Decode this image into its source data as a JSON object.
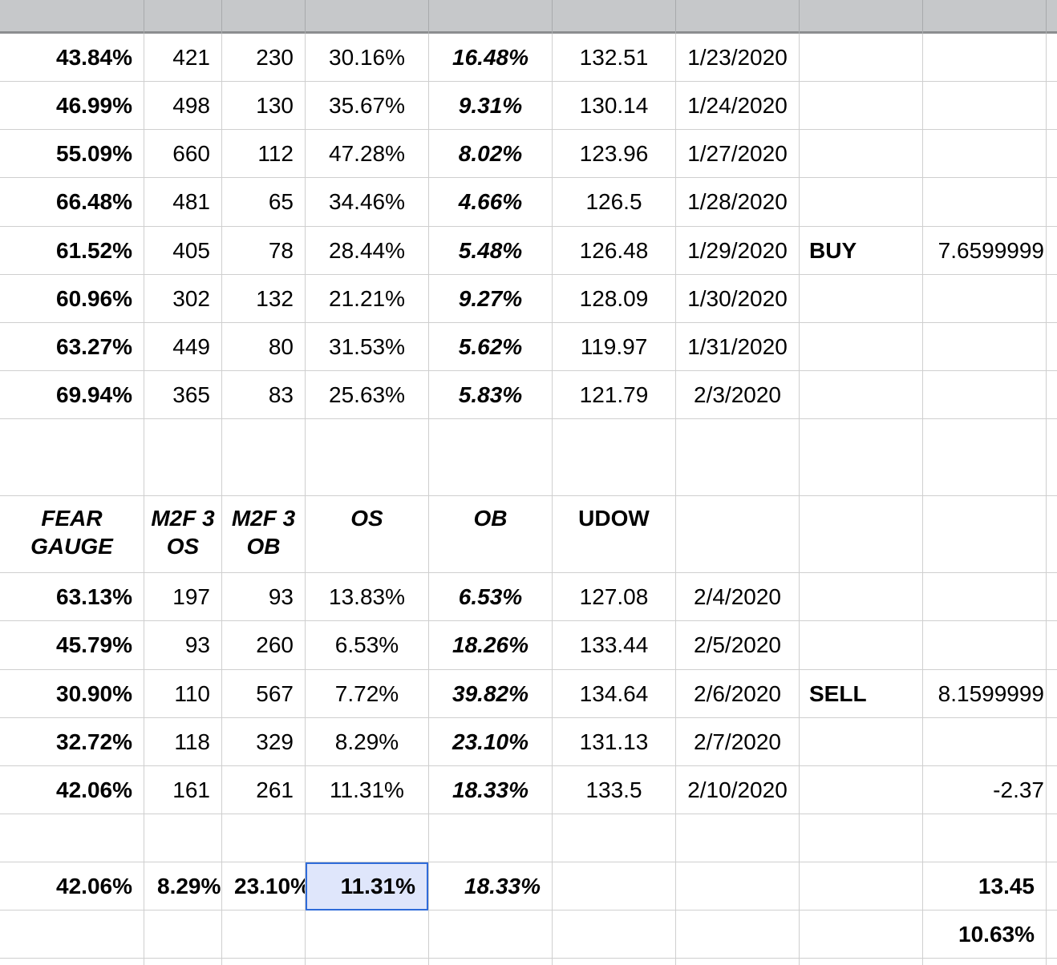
{
  "top_rows": [
    {
      "fear": "43.84%",
      "os3": "421",
      "ob3": "230",
      "os": "30.16%",
      "ob": "16.48%",
      "udow": "132.51",
      "date": "1/23/2020",
      "signal": "",
      "value": ""
    },
    {
      "fear": "46.99%",
      "os3": "498",
      "ob3": "130",
      "os": "35.67%",
      "ob": "9.31%",
      "udow": "130.14",
      "date": "1/24/2020",
      "signal": "",
      "value": ""
    },
    {
      "fear": "55.09%",
      "os3": "660",
      "ob3": "112",
      "os": "47.28%",
      "ob": "8.02%",
      "udow": "123.96",
      "date": "1/27/2020",
      "signal": "",
      "value": ""
    },
    {
      "fear": "66.48%",
      "os3": "481",
      "ob3": "65",
      "os": "34.46%",
      "ob": "4.66%",
      "udow": "126.5",
      "date": "1/28/2020",
      "signal": "",
      "value": ""
    },
    {
      "fear": "61.52%",
      "os3": "405",
      "ob3": "78",
      "os": "28.44%",
      "ob": "5.48%",
      "udow": "126.48",
      "date": "1/29/2020",
      "signal": "BUY",
      "value": "7.6599999"
    },
    {
      "fear": "60.96%",
      "os3": "302",
      "ob3": "132",
      "os": "21.21%",
      "ob": "9.27%",
      "udow": "128.09",
      "date": "1/30/2020",
      "signal": "",
      "value": ""
    },
    {
      "fear": "63.27%",
      "os3": "449",
      "ob3": "80",
      "os": "31.53%",
      "ob": "5.62%",
      "udow": "119.97",
      "date": "1/31/2020",
      "signal": "",
      "value": ""
    },
    {
      "fear": "69.94%",
      "os3": "365",
      "ob3": "83",
      "os": "25.63%",
      "ob": "5.83%",
      "udow": "121.79",
      "date": "2/3/2020",
      "signal": "",
      "value": ""
    }
  ],
  "header": {
    "fear_gauge": "FEAR GAUGE",
    "m2f_3_os": "M2F 3 OS",
    "m2f_3_ob": "M2F 3 OB",
    "os": "OS",
    "ob": "OB",
    "udow": "UDOW"
  },
  "bottom_rows": [
    {
      "fear": "63.13%",
      "os3": "197",
      "ob3": "93",
      "os": "13.83%",
      "ob": "6.53%",
      "udow": "127.08",
      "date": "2/4/2020",
      "signal": "",
      "value": ""
    },
    {
      "fear": "45.79%",
      "os3": "93",
      "ob3": "260",
      "os": "6.53%",
      "ob": "18.26%",
      "udow": "133.44",
      "date": "2/5/2020",
      "signal": "",
      "value": ""
    },
    {
      "fear": "30.90%",
      "os3": "110",
      "ob3": "567",
      "os": "7.72%",
      "ob": "39.82%",
      "udow": "134.64",
      "date": "2/6/2020",
      "signal": "SELL",
      "value": "8.1599999"
    },
    {
      "fear": "32.72%",
      "os3": "118",
      "ob3": "329",
      "os": "8.29%",
      "ob": "23.10%",
      "udow": "131.13",
      "date": "2/7/2020",
      "signal": "",
      "value": ""
    },
    {
      "fear": "42.06%",
      "os3": "161",
      "ob3": "261",
      "os": "11.31%",
      "ob": "18.33%",
      "udow": "133.5",
      "date": "2/10/2020",
      "signal": "",
      "value": "-2.37"
    }
  ],
  "summary_row": {
    "fear": "42.06%",
    "os3": "8.29%",
    "ob3": "23.10%",
    "os": "11.31%",
    "ob": "18.33%",
    "value": "13.45"
  },
  "final_row": {
    "value": "10.63%"
  },
  "colors": {
    "selection_border": "#2f6bd9",
    "selection_fill": "#dfe6fb",
    "header_bar": "#c6c8ca"
  }
}
